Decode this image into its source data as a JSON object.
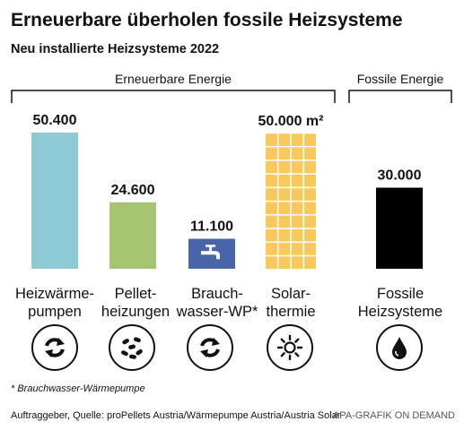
{
  "title": "Erneuerbare überholen fossile Heizsysteme",
  "subtitle": "Neu installierte Heizsysteme 2022",
  "groups": {
    "renewable": "Erneuerbare Energie",
    "fossil": "Fossile Energie"
  },
  "colors": {
    "heatpump": "#8ecad3",
    "pellet": "#a6c472",
    "hotwater": "#4a66a8",
    "solar": "#f7c95c",
    "fossil": "#000000"
  },
  "chart_data": {
    "type": "bar",
    "categories": [
      "Heizwärme-pumpen",
      "Pellet-heizungen",
      "Brauch-wasser-WP*",
      "Solar-thermie",
      "Fossile Heizsysteme"
    ],
    "values": [
      50400,
      24600,
      11100,
      50000,
      30000
    ],
    "value_labels": [
      "50.400",
      "24.600",
      "11.100",
      "50.000 m²",
      "30.000"
    ],
    "title": "Erneuerbare überholen fossile Heizsysteme",
    "subtitle": "Neu installierte Heizsysteme 2022"
  },
  "categories_lines": [
    [
      "Heizwärme-",
      "pumpen"
    ],
    [
      "Pellet-",
      "heizungen"
    ],
    [
      "Brauch-",
      "wasser-WP*"
    ],
    [
      "Solar-",
      "thermie"
    ],
    [
      "Fossile",
      "Heizsysteme"
    ]
  ],
  "icons": [
    "recycle-icon",
    "pellets-icon",
    "recycle-icon",
    "sun-icon",
    "oil-drop-icon"
  ],
  "footnote": "* Brauchwasser-Wärmepumpe",
  "source": "Auftraggeber, Quelle: proPellets Austria/Wärmepumpe Austria/Austria Solar",
  "credit": "APA-GRAFIK ON DEMAND"
}
